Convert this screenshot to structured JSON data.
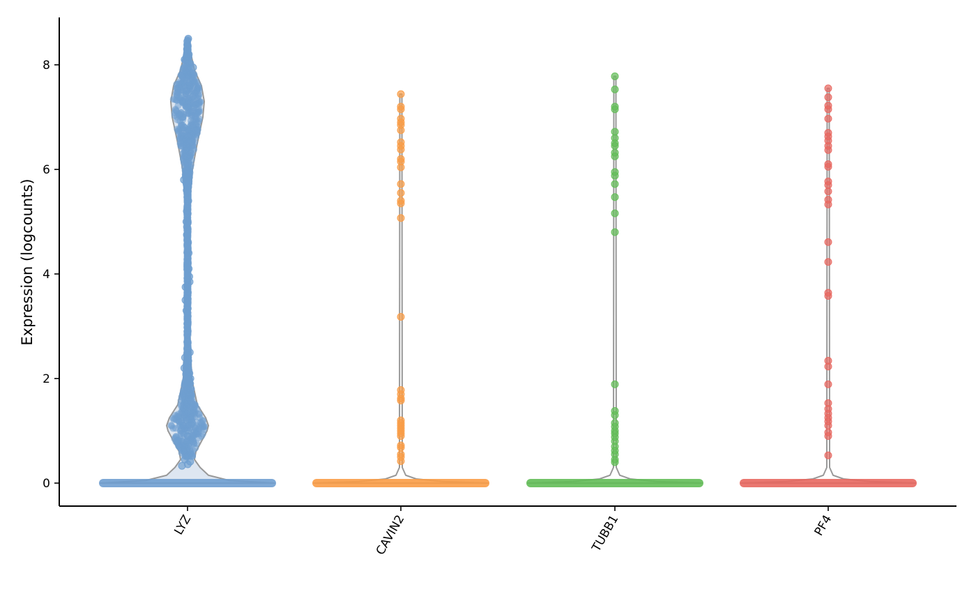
{
  "chart_data": {
    "type": "violin",
    "title": "",
    "xlabel": "",
    "ylabel": "Expression (logcounts)",
    "ylim": [
      -0.42,
      8.9
    ],
    "yticks": [
      0,
      2,
      4,
      6,
      8
    ],
    "grid": false,
    "legend": "none",
    "categories": [
      "LYZ",
      "CAVIN2",
      "TUBB1",
      "PF4"
    ],
    "series": [
      {
        "category": "LYZ",
        "color": "#6f9fd0",
        "fill": "#dde6f1",
        "zero_share": "majority",
        "nonzero_values": [
          0.33,
          0.36,
          0.41,
          0.45,
          0.55,
          0.7,
          0.8,
          0.9,
          1.0,
          1.05,
          1.1,
          1.12,
          1.15,
          1.2,
          1.3,
          1.4,
          1.5,
          1.6,
          1.7,
          1.8,
          1.9,
          2.0,
          2.1,
          2.2,
          2.3,
          2.4,
          2.5,
          2.7,
          2.9,
          3.05,
          3.3,
          3.5,
          3.75,
          3.85,
          3.95,
          4.1,
          4.2,
          4.4,
          4.6,
          4.75,
          4.9,
          5.0,
          5.2,
          5.4,
          5.6,
          5.8,
          6.0,
          6.2,
          6.4,
          6.6,
          6.8,
          7.0,
          7.1,
          7.2,
          7.3,
          7.4,
          7.5,
          7.6,
          7.7,
          7.8,
          7.95,
          8.1,
          8.2,
          8.3,
          8.45,
          8.5
        ],
        "density_modes": [
          1.1,
          7.3
        ]
      },
      {
        "category": "CAVIN2",
        "color": "#fa9c46",
        "zero_share": "majority",
        "nonzero_values": [
          0.42,
          0.5,
          0.55,
          0.68,
          0.72,
          0.9,
          0.95,
          1.0,
          1.05,
          1.1,
          1.15,
          1.2,
          1.58,
          1.62,
          1.7,
          1.78,
          3.18,
          5.07,
          5.35,
          5.4,
          5.55,
          5.72,
          6.04,
          6.15,
          6.2,
          6.38,
          6.45,
          6.52,
          6.75,
          6.85,
          6.9,
          6.97,
          7.15,
          7.2,
          7.44
        ]
      },
      {
        "category": "TUBB1",
        "color": "#62bd57",
        "zero_share": "majority",
        "nonzero_values": [
          0.4,
          0.45,
          0.55,
          0.62,
          0.7,
          0.8,
          0.88,
          0.95,
          1.0,
          1.08,
          1.15,
          1.3,
          1.38,
          1.89,
          4.8,
          5.16,
          5.47,
          5.72,
          5.88,
          5.95,
          6.25,
          6.32,
          6.45,
          6.5,
          6.6,
          6.72,
          7.15,
          7.2,
          7.53,
          7.78
        ]
      },
      {
        "category": "PF4",
        "color": "#e8675f",
        "zero_share": "majority",
        "nonzero_values": [
          0.53,
          0.9,
          0.97,
          1.1,
          1.18,
          1.25,
          1.33,
          1.42,
          1.53,
          1.89,
          2.23,
          2.34,
          3.58,
          3.64,
          4.23,
          4.61,
          5.33,
          5.42,
          5.58,
          5.7,
          5.77,
          6.05,
          6.1,
          6.37,
          6.45,
          6.55,
          6.63,
          6.7,
          6.97,
          7.15,
          7.22,
          7.38,
          7.55
        ]
      }
    ]
  }
}
